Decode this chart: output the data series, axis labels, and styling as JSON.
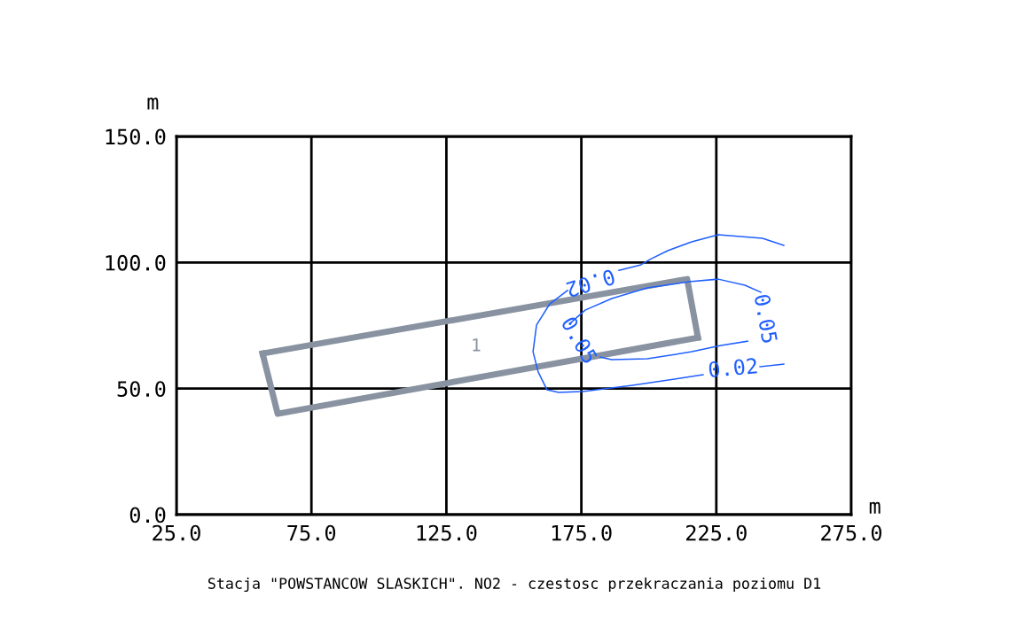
{
  "chart_data": {
    "type": "line",
    "title": "Stacja \"POWSTANCOW SLASKICH\". NO2 - czestosc przekraczania poziomu D1",
    "xlabel": "m",
    "ylabel": "m",
    "xlim": [
      25,
      275
    ],
    "ylim": [
      0,
      150
    ],
    "xticks": [
      {
        "value": 25,
        "label": "25.0"
      },
      {
        "value": 75,
        "label": "75.0"
      },
      {
        "value": 125,
        "label": "125.0"
      },
      {
        "value": 175,
        "label": "175.0"
      },
      {
        "value": 225,
        "label": "225.0"
      },
      {
        "value": 275,
        "label": "275.0"
      }
    ],
    "yticks": [
      {
        "value": 0,
        "label": "0.0"
      },
      {
        "value": 50,
        "label": "50.0"
      },
      {
        "value": 100,
        "label": "100.0"
      },
      {
        "value": 150,
        "label": "150.0"
      }
    ],
    "grid": true,
    "legend": false,
    "marker": "none",
    "line_style": "solid",
    "series": [
      {
        "color": "#8892a0",
        "x": [
          56.9,
          214.2,
          218.2
        ],
        "values": [
          63.9,
          93.4,
          70.2
        ]
      },
      {
        "color": "#8892a0",
        "x": [
          56.9,
          62.5,
          218.2
        ],
        "values": [
          63.9,
          40.0,
          70.2
        ]
      },
      {
        "color": "#1f5fff",
        "x": [
          250.0,
          242.1,
          225.7,
          215.9,
          207.0,
          200.4,
          197.1,
          188.9,
          180,
          169.9,
          163.3,
          158.4,
          157.1,
          159.0,
          162.3,
          166.6,
          175.5,
          193.9,
          211.6,
          220.1,
          230,
          241.2,
          250.0
        ],
        "values": [
          106.8,
          109.6,
          111.0,
          108.2,
          104.7,
          101.2,
          99.1,
          96.9,
          null,
          88.9,
          83.6,
          75.2,
          64.6,
          56.6,
          49.5,
          48.5,
          48.8,
          51.3,
          54.1,
          55.5,
          null,
          58.7,
          59.7
        ]
      },
      {
        "color": "#1f5fff",
        "x": [
          170.9,
          176.4,
          186.3,
          199.4,
          214.9,
          225.7,
          235.6,
          241.5,
          240,
          236.6,
          226.7,
          215.9,
          199.4,
          186.3,
          182.0
        ],
        "values": [
          75.9,
          81.1,
          85.7,
          89.9,
          92.4,
          93.4,
          91.0,
          88.2,
          null,
          68.8,
          67.1,
          64.6,
          61.8,
          61.5,
          62.5
        ]
      }
    ],
    "annotations": [
      "0.02",
      "0.02",
      "0.05",
      "0.05",
      "1"
    ]
  }
}
